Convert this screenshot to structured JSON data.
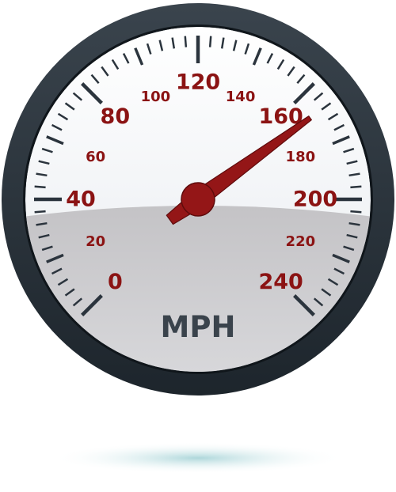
{
  "gauge": {
    "unit": "MPH",
    "min": 0,
    "max": 240,
    "value": 168,
    "major_labels": [
      "0",
      "40",
      "80",
      "120",
      "160",
      "200",
      "240"
    ],
    "minor_labels": [
      "20",
      "60",
      "100",
      "140",
      "180",
      "220"
    ]
  },
  "colors": {
    "bezel": "#27313a",
    "face": "#f1f4f8",
    "face_lower": "#c9c8cb",
    "ticks": "#2b343d",
    "numbers": "#8b1313",
    "needle": "#941617",
    "unit_text": "#3a434c",
    "shadow": "#b9dde0"
  },
  "icons": {
    "needle": "needle-icon",
    "hub": "needle-hub-icon"
  }
}
